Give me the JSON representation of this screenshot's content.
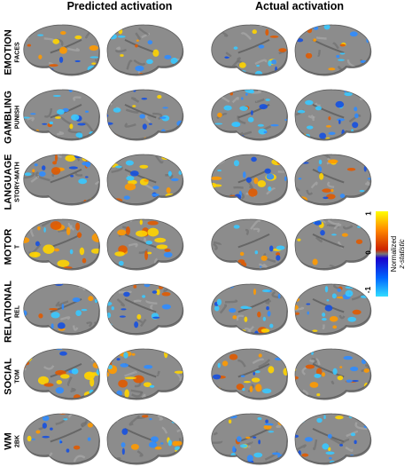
{
  "columns": {
    "predicted": "Predicted activation",
    "actual": "Actual activation"
  },
  "rows": [
    {
      "task": "EMOTION",
      "contrast": "FACES",
      "pred_warm": 0.45,
      "pred_cool": 0.35,
      "act_warm": 0.35,
      "act_cool": 0.45
    },
    {
      "task": "GAMBLING",
      "contrast": "PUNISH",
      "pred_warm": 0.2,
      "pred_cool": 0.6,
      "act_warm": 0.2,
      "act_cool": 0.85
    },
    {
      "task": "LANGUAGE",
      "contrast": "STORY-MATH",
      "pred_warm": 0.55,
      "pred_cool": 0.45,
      "act_warm": 0.6,
      "act_cool": 0.5
    },
    {
      "task": "MOTOR",
      "contrast": "T",
      "pred_warm": 0.8,
      "pred_cool": 0.1,
      "act_warm": 0.3,
      "act_cool": 0.25
    },
    {
      "task": "RELATIONAL",
      "contrast": "REL",
      "pred_warm": 0.35,
      "pred_cool": 0.55,
      "act_warm": 0.4,
      "act_cool": 0.7
    },
    {
      "task": "SOCIAL",
      "contrast": "TOM",
      "pred_warm": 0.75,
      "pred_cool": 0.3,
      "act_warm": 0.6,
      "act_cool": 0.4
    },
    {
      "task": "WM",
      "contrast": "2BK",
      "pred_warm": 0.3,
      "pred_cool": 0.45,
      "act_warm": 0.3,
      "act_cool": 0.8
    }
  ],
  "colorbar": {
    "max_label": "1",
    "mid_label": "0",
    "min_label": "-1",
    "title_line1": "Normalized",
    "title_line2": "z-statistic",
    "colors_warm": [
      "#ffff00",
      "#ff8800",
      "#cc2200"
    ],
    "colors_cool": [
      "#1a00cc",
      "#0066ff",
      "#33ddff"
    ]
  },
  "style": {
    "brain_fill": "#8c8c8c",
    "brain_shadow": "#6f6f6f",
    "brain_highlight": "#a8a8a8",
    "warm": [
      "#ffd400",
      "#ff9a00",
      "#e05a00"
    ],
    "cool": [
      "#1550e0",
      "#2f8cff",
      "#39c8ff"
    ]
  }
}
